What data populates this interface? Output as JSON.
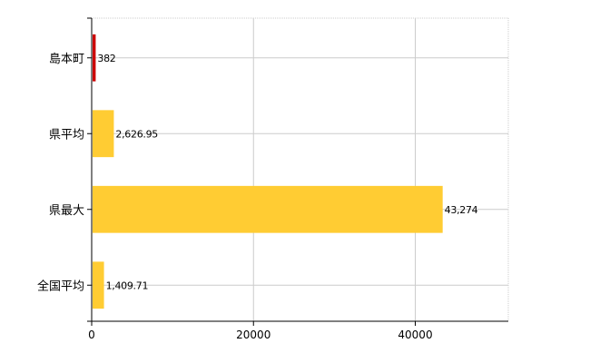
{
  "chart_data": {
    "type": "bar",
    "orientation": "horizontal",
    "categories": [
      "島本町",
      "県平均",
      "県最大",
      "全国平均"
    ],
    "values": [
      382,
      2626.95,
      43274,
      1409.71
    ],
    "value_labels": [
      "382",
      "2,626.95",
      "43,274",
      "1,409.71"
    ],
    "colors": [
      "#cc0000",
      "#ffcc33",
      "#ffcc33",
      "#ffcc33"
    ],
    "xlim": [
      0,
      51500
    ],
    "x_ticks": [
      0,
      20000,
      40000
    ],
    "x_tick_labels": [
      "0",
      "20000",
      "40000"
    ],
    "grid": true,
    "legend": "none",
    "title": "",
    "xlabel": "",
    "ylabel": ""
  }
}
